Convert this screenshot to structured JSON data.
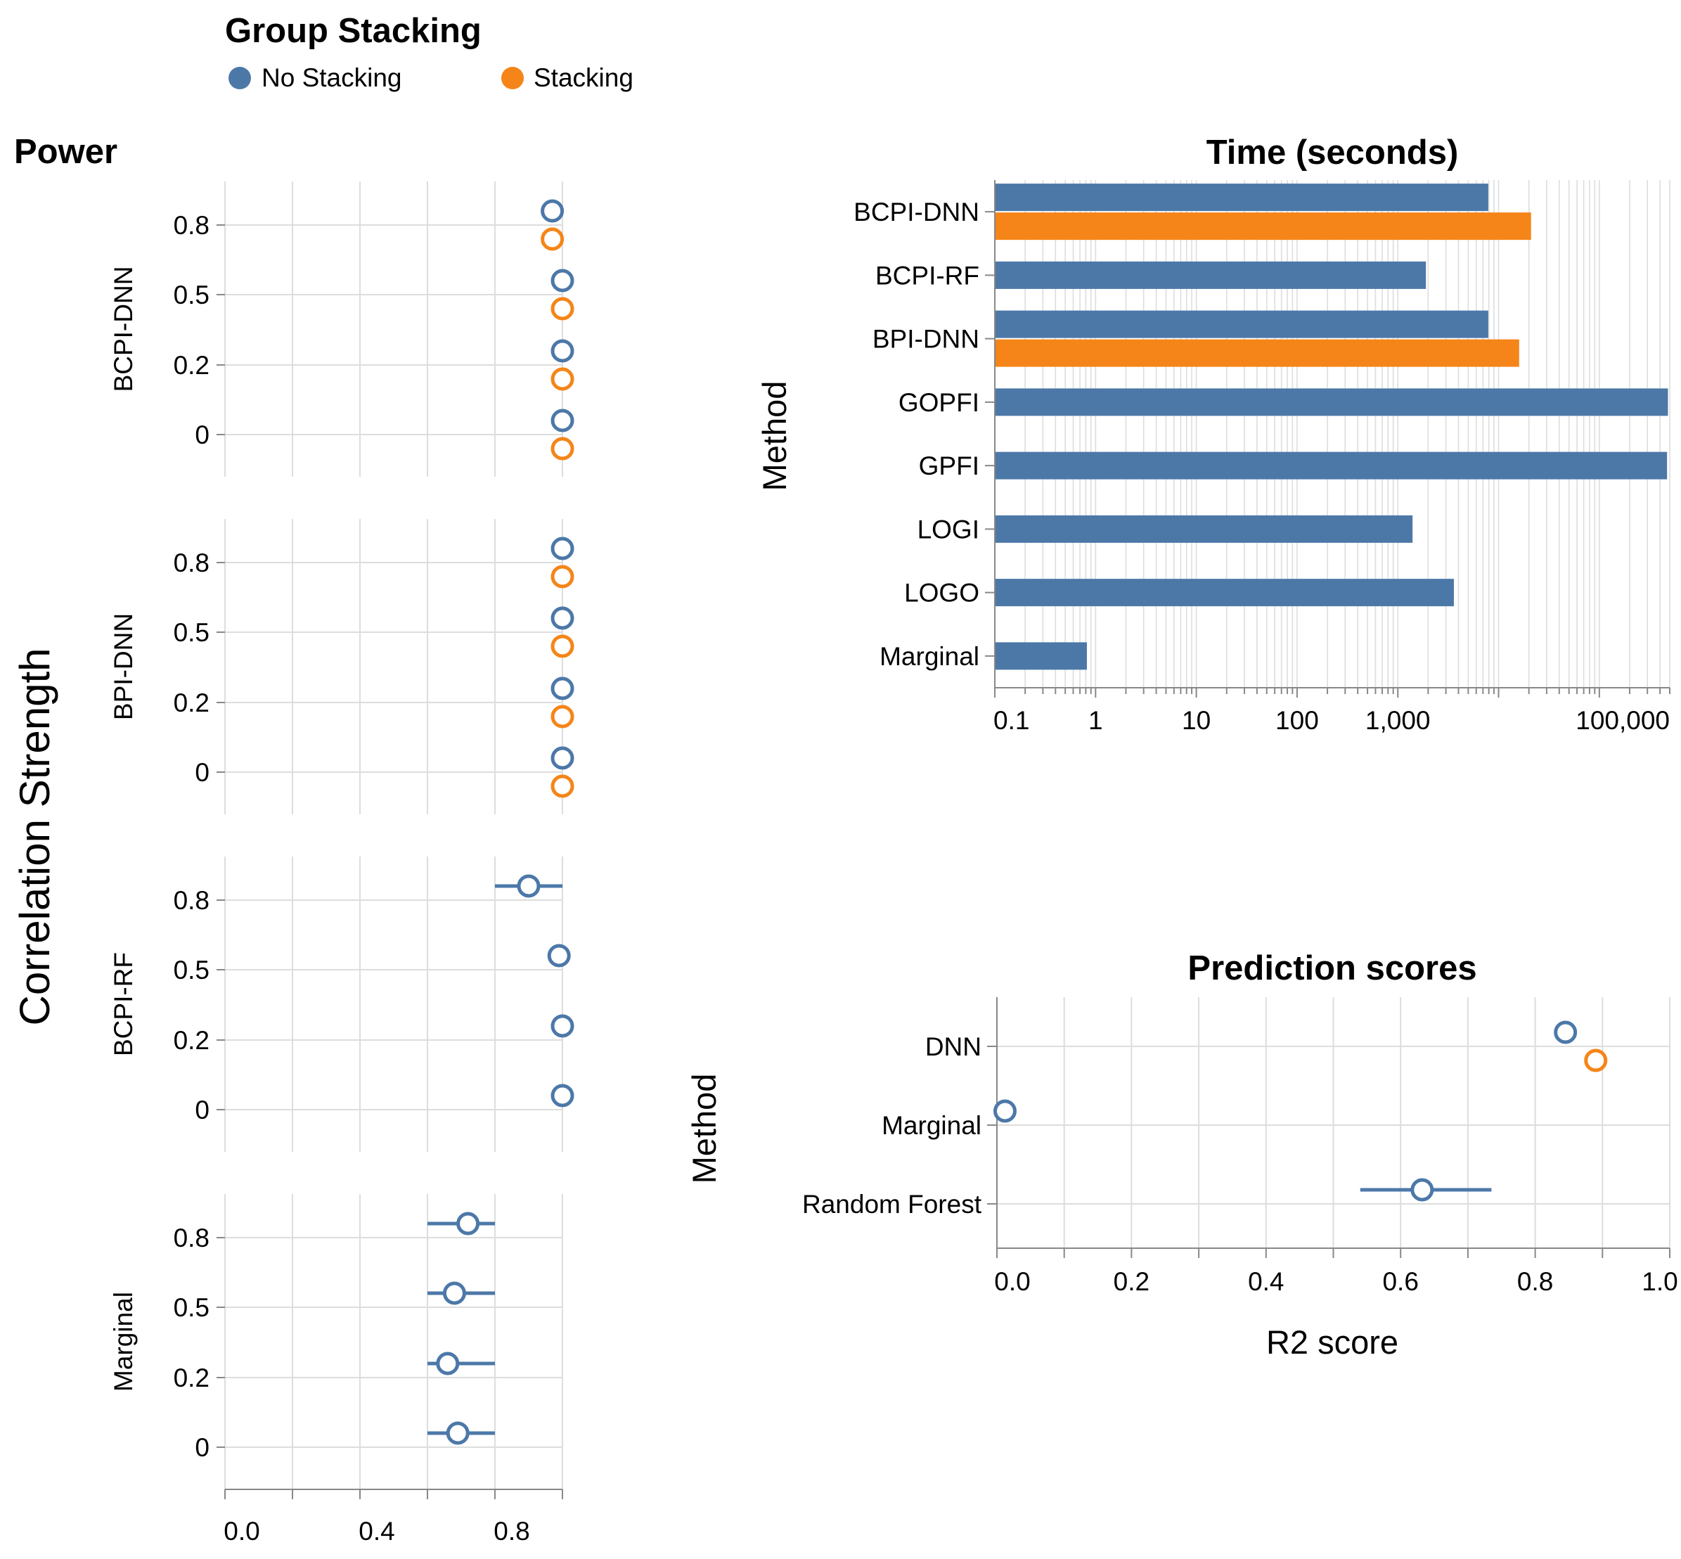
{
  "colors": {
    "no_stacking": "#4c78a8",
    "stacking": "#f58518",
    "grid": "#dddddd",
    "axis": "#888888"
  },
  "legend": {
    "title": "Group Stacking",
    "entries": [
      {
        "label": "No Stacking",
        "color": "#4c78a8"
      },
      {
        "label": "Stacking",
        "color": "#f58518"
      }
    ]
  },
  "chart_data": [
    {
      "type": "scatter",
      "title": "Power",
      "ylabel": "Correlation Strength",
      "xlim": [
        0,
        1
      ],
      "x_ticks": [
        "0.0",
        "0.4",
        "0.8"
      ],
      "y_ticks": [
        "0.8",
        "0.5",
        "0.2",
        "0"
      ],
      "facets": [
        {
          "label": "BCPI-DNN",
          "series": [
            {
              "name": "No Stacking",
              "points": [
                {
                  "y": "0.8",
                  "x": 0.97
                },
                {
                  "y": "0.5",
                  "x": 1.0
                },
                {
                  "y": "0.2",
                  "x": 1.0
                },
                {
                  "y": "0",
                  "x": 1.0
                }
              ]
            },
            {
              "name": "Stacking",
              "points": [
                {
                  "y": "0.8",
                  "x": 0.97
                },
                {
                  "y": "0.5",
                  "x": 1.0
                },
                {
                  "y": "0.2",
                  "x": 1.0
                },
                {
                  "y": "0",
                  "x": 1.0
                }
              ]
            }
          ]
        },
        {
          "label": "BPI-DNN",
          "series": [
            {
              "name": "No Stacking",
              "points": [
                {
                  "y": "0.8",
                  "x": 1.0
                },
                {
                  "y": "0.5",
                  "x": 1.0
                },
                {
                  "y": "0.2",
                  "x": 1.0
                },
                {
                  "y": "0",
                  "x": 1.0
                }
              ]
            },
            {
              "name": "Stacking",
              "points": [
                {
                  "y": "0.8",
                  "x": 1.0
                },
                {
                  "y": "0.5",
                  "x": 1.0
                },
                {
                  "y": "0.2",
                  "x": 1.0
                },
                {
                  "y": "0",
                  "x": 1.0
                }
              ]
            }
          ]
        },
        {
          "label": "BCPI-RF",
          "series": [
            {
              "name": "No Stacking",
              "points": [
                {
                  "y": "0.8",
                  "x": 0.9,
                  "lo": 0.8,
                  "hi": 1.0
                },
                {
                  "y": "0.5",
                  "x": 0.99
                },
                {
                  "y": "0.2",
                  "x": 1.0
                },
                {
                  "y": "0",
                  "x": 1.0
                }
              ]
            }
          ]
        },
        {
          "label": "Marginal",
          "series": [
            {
              "name": "No Stacking",
              "points": [
                {
                  "y": "0.8",
                  "x": 0.72,
                  "lo": 0.6,
                  "hi": 0.8
                },
                {
                  "y": "0.5",
                  "x": 0.68,
                  "lo": 0.6,
                  "hi": 0.8
                },
                {
                  "y": "0.2",
                  "x": 0.66,
                  "lo": 0.6,
                  "hi": 0.8
                },
                {
                  "y": "0",
                  "x": 0.69,
                  "lo": 0.6,
                  "hi": 0.8
                }
              ]
            }
          ]
        }
      ]
    },
    {
      "type": "bar",
      "title": "Time (seconds)",
      "ylabel": "Method",
      "xscale": "log",
      "xlim": [
        0.1,
        500000
      ],
      "x_ticks": [
        "0.1",
        "1",
        "10",
        "100",
        "1,000",
        "100,000"
      ],
      "categories": [
        "BCPI-DNN",
        "BCPI-RF",
        "BPI-DNN",
        "GOPFI",
        "GPFI",
        "LOGI",
        "LOGO",
        "Marginal"
      ],
      "series": [
        {
          "name": "No Stacking",
          "values": [
            7900,
            1900,
            7900,
            480000,
            470000,
            1400,
            3600,
            0.82
          ]
        },
        {
          "name": "Stacking",
          "values": [
            21000,
            null,
            16000,
            null,
            null,
            null,
            null,
            null
          ]
        }
      ]
    },
    {
      "type": "scatter",
      "title": "Prediction scores",
      "xlabel": "R2 score",
      "ylabel": "Method",
      "xlim": [
        0,
        1
      ],
      "x_ticks": [
        "0.0",
        "0.2",
        "0.4",
        "0.6",
        "0.8",
        "1.0"
      ],
      "categories": [
        "DNN",
        "Marginal",
        "Random Forest"
      ],
      "series": [
        {
          "name": "No Stacking",
          "points": [
            {
              "y": "DNN",
              "x": 0.845
            },
            {
              "y": "Marginal",
              "x": 0.012
            },
            {
              "y": "Random Forest",
              "x": 0.632,
              "lo": 0.54,
              "hi": 0.735
            }
          ]
        },
        {
          "name": "Stacking",
          "points": [
            {
              "y": "DNN",
              "x": 0.89
            }
          ]
        }
      ]
    }
  ]
}
